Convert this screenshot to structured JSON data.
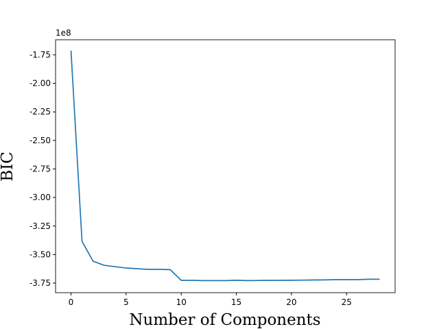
{
  "chart_data": {
    "type": "line",
    "xlabel": "Number of Components",
    "ylabel": "BIC",
    "y_offset_text": "1e8",
    "x": [
      0,
      1,
      2,
      3,
      4,
      5,
      6,
      7,
      8,
      9,
      10,
      11,
      12,
      13,
      14,
      15,
      16,
      17,
      18,
      19,
      20,
      21,
      22,
      23,
      24,
      25,
      26,
      27,
      28
    ],
    "series": [
      {
        "color": "#1f77b4",
        "values": [
          -1.714,
          -3.384,
          -3.558,
          -3.594,
          -3.606,
          -3.618,
          -3.624,
          -3.63,
          -3.63,
          -3.632,
          -3.726,
          -3.726,
          -3.728,
          -3.728,
          -3.728,
          -3.725,
          -3.728,
          -3.727,
          -3.726,
          -3.726,
          -3.725,
          -3.724,
          -3.723,
          -3.722,
          -3.72,
          -3.72,
          -3.72,
          -3.716,
          -3.716
        ]
      }
    ],
    "xlim": [
      -1.4,
      29.4
    ],
    "ylim": [
      -3.834,
      -1.618
    ],
    "xticks": [
      0,
      5,
      10,
      15,
      20,
      25
    ],
    "yticks": [
      -1.75,
      {
        "value": -2.0,
        "label": "-2.00"
      },
      -2.25,
      {
        "value": -2.5,
        "label": "-2.50"
      },
      -2.75,
      {
        "value": -3.0,
        "label": "-3.00"
      },
      -3.25,
      {
        "value": -3.5,
        "label": "-3.50"
      },
      -3.75
    ]
  }
}
